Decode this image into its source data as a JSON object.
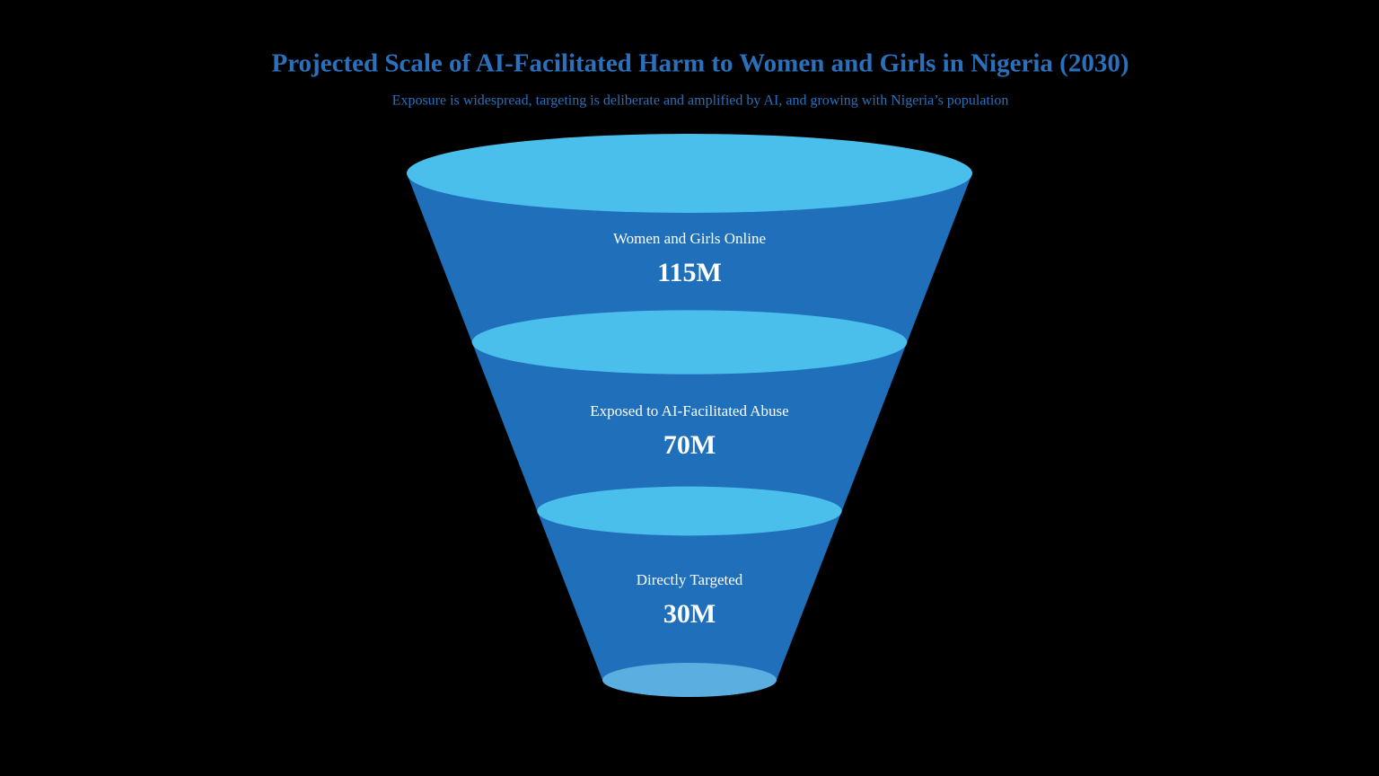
{
  "chart_data": {
    "type": "funnel",
    "title": "Projected Scale of AI-Facilitated Harm to Women and Girls in Nigeria (2030)",
    "subtitle": "Exposure is widespread, targeting is deliberate and amplified by AI, and growing with Nigeria’s population",
    "categories": [
      "Women and Girls Online",
      "Exposed to AI-Facilitated Abuse",
      "Directly Targeted"
    ],
    "values": [
      115,
      70,
      30
    ],
    "value_labels": [
      "115M",
      "70M",
      "30M"
    ],
    "color": "#1f6fba"
  }
}
